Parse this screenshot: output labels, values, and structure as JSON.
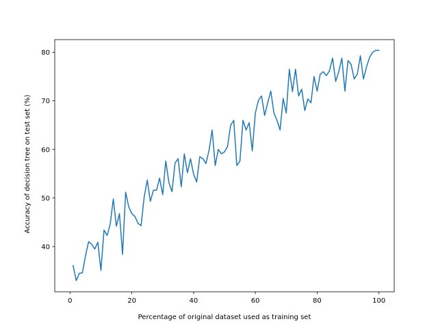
{
  "chart_data": {
    "type": "line",
    "title": "",
    "xlabel": "Percentage of original dataset used as training set",
    "ylabel": "Accuracy of decision tree on test set (%)",
    "xlim": [
      -4.95,
      104.95
    ],
    "ylim": [
      30.7,
      82.6
    ],
    "x_ticks": [
      0,
      20,
      40,
      60,
      80,
      100
    ],
    "y_ticks": [
      40,
      50,
      60,
      70,
      80
    ],
    "grid": false,
    "legend": "none",
    "line_color": "#1f77b4",
    "series": [
      {
        "x": [
          1,
          2,
          3,
          4,
          5,
          6,
          7,
          8,
          9,
          10,
          11,
          12,
          13,
          14,
          15,
          16,
          17,
          18,
          19,
          20,
          21,
          22,
          23,
          24,
          25,
          26,
          27,
          28,
          29,
          30,
          31,
          32,
          33,
          34,
          35,
          36,
          37,
          38,
          39,
          40,
          41,
          42,
          43,
          44,
          45,
          46,
          47,
          48,
          49,
          50,
          51,
          52,
          53,
          54,
          55,
          56,
          57,
          58,
          59,
          60,
          61,
          62,
          63,
          64,
          65,
          66,
          67,
          68,
          69,
          70,
          71,
          72,
          73,
          74,
          75,
          76,
          77,
          78,
          79,
          80,
          81,
          82,
          83,
          84,
          85,
          86,
          87,
          88,
          89,
          90,
          91,
          92,
          93,
          94,
          95,
          96,
          97,
          98,
          99,
          100
        ],
        "y": [
          36.1,
          33.0,
          34.5,
          34.6,
          38.1,
          41.0,
          40.5,
          39.5,
          40.9,
          35.1,
          43.4,
          42.3,
          44.6,
          49.8,
          44.2,
          46.8,
          38.4,
          51.2,
          48.2,
          46.8,
          46.2,
          44.8,
          44.3,
          50.2,
          53.7,
          49.3,
          51.6,
          51.6,
          54.1,
          50.7,
          57.6,
          53.2,
          51.3,
          57.2,
          58.1,
          52.3,
          59.1,
          55.2,
          58.1,
          54.9,
          53.3,
          58.5,
          58.1,
          57.1,
          59.8,
          64.0,
          56.7,
          60.0,
          59.1,
          59.5,
          60.6,
          65.0,
          66.0,
          56.7,
          57.6,
          66.0,
          64.0,
          65.5,
          59.7,
          67.5,
          70.1,
          71.0,
          67.0,
          69.6,
          72.0,
          67.5,
          66.0,
          64.0,
          70.5,
          67.5,
          76.5,
          71.9,
          76.5,
          71.0,
          72.4,
          68.0,
          70.4,
          69.6,
          75.0,
          72.0,
          75.5,
          76.0,
          75.2,
          76.2,
          78.8,
          74.0,
          76.0,
          78.8,
          72.0,
          78.3,
          77.5,
          74.5,
          75.5,
          79.3,
          74.5,
          77.0,
          79.0,
          80.0,
          80.4,
          80.4
        ]
      }
    ]
  }
}
